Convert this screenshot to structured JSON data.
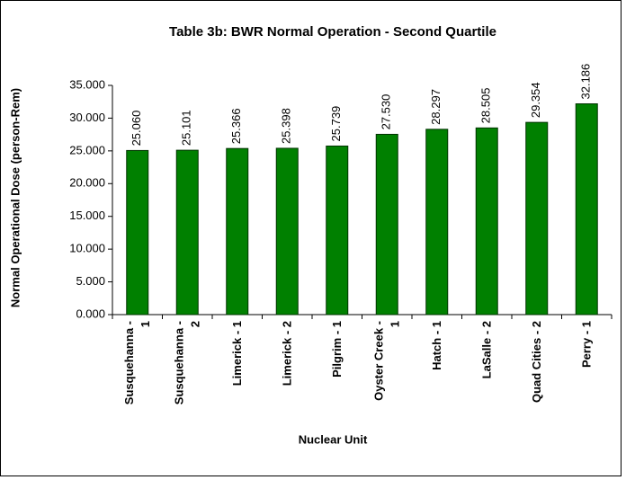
{
  "chart_data": {
    "type": "bar",
    "title": "Table 3b: BWR Normal Operation - Second Quartile",
    "x_label": "Nuclear Unit",
    "y_label": "Normal Operational Dose (person-Rem)",
    "categories": [
      "Susquehanna - 1",
      "Susquehanna - 2",
      "Limerick - 1",
      "Limerick - 2",
      "Pilgrim - 1",
      "Oyster Creek - 1",
      "Hatch - 1",
      "LaSalle - 2",
      "Quad Cities - 2",
      "Perry - 1"
    ],
    "values": [
      25.06,
      25.101,
      25.366,
      25.398,
      25.739,
      27.53,
      28.297,
      28.505,
      29.354,
      32.186
    ],
    "value_labels": [
      "25.060",
      "25.101",
      "25.366",
      "25.398",
      "25.739",
      "27.530",
      "28.297",
      "28.505",
      "29.354",
      "32.186"
    ],
    "color": "#008000",
    "ylim": [
      0,
      35
    ],
    "yticks": [
      {
        "value": 0,
        "label": "0.000"
      },
      {
        "value": 5,
        "label": "5.000"
      },
      {
        "value": 10,
        "label": "10.000"
      },
      {
        "value": 15,
        "label": "15.000"
      },
      {
        "value": 20,
        "label": "20.000"
      },
      {
        "value": 25,
        "label": "25.000"
      },
      {
        "value": 30,
        "label": "30.000"
      },
      {
        "value": 35,
        "label": "35.000"
      }
    ],
    "grid": false
  }
}
